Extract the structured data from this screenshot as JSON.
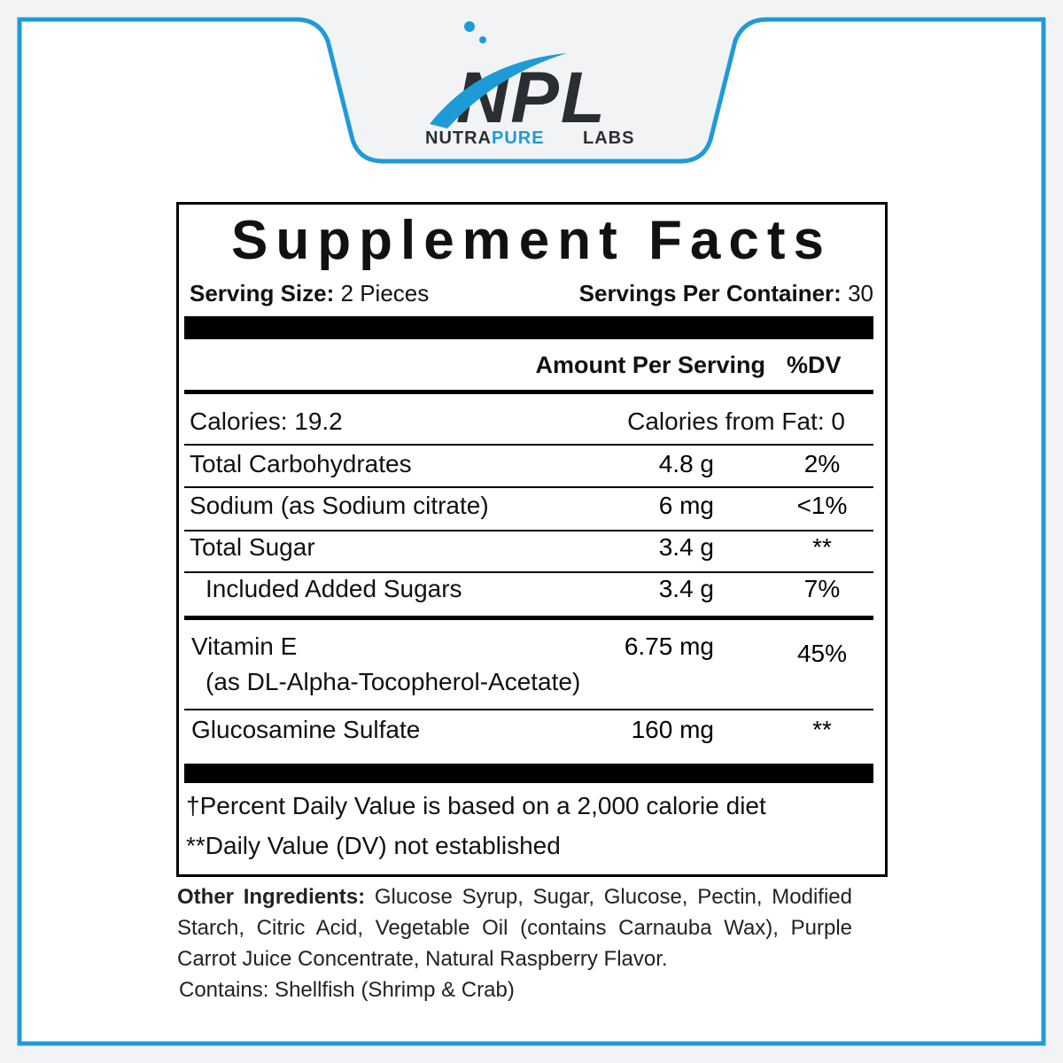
{
  "logo": {
    "mark": "NPL",
    "name": [
      "NUTRA",
      "PURE",
      "LABS"
    ]
  },
  "panel": {
    "title": "Supplement Facts",
    "serving_size_label": "Serving Size:",
    "serving_size": "2 Pieces",
    "servings_label": "Servings Per Container:",
    "servings": "30",
    "header": {
      "amount": "Amount Per Serving",
      "dv": "%DV"
    },
    "calories": "Calories: 19.2",
    "calories_fat": "Calories from Fat: 0",
    "rows": [
      {
        "name": "Total Carbohydrates",
        "amount": "4.8 g",
        "dv": "2%"
      },
      {
        "name": "Sodium (as Sodium citrate)",
        "amount": "6 mg",
        "dv": "<1%"
      },
      {
        "name": "Total Sugar",
        "amount": "3.4 g",
        "dv": "**"
      },
      {
        "name": "Included Added Sugars",
        "amount": "3.4 g",
        "dv": "7%"
      },
      {
        "name": "Vitamin E",
        "detail": "(as DL-Alpha-Tocopherol-Acetate)",
        "amount": "6.75 mg",
        "dv": "45%"
      },
      {
        "name": "Glucosamine Sulfate",
        "amount": "160 mg",
        "dv": "**"
      }
    ],
    "footnotes": [
      "†Percent Daily Value is based on a 2,000 calorie diet",
      "**Daily Value (DV) not established"
    ]
  },
  "other_ingredients": {
    "label": "Other Ingredients:",
    "text": "Glucose Syrup, Sugar, Glucose, Pectin, Modified Starch, Citric Acid, Vegetable Oil (contains Carnauba Wax), Purple Carrot Juice Concentrate, Natural Raspberry Flavor."
  },
  "contains": "Contains: Shellfish (Shrimp & Crab)"
}
